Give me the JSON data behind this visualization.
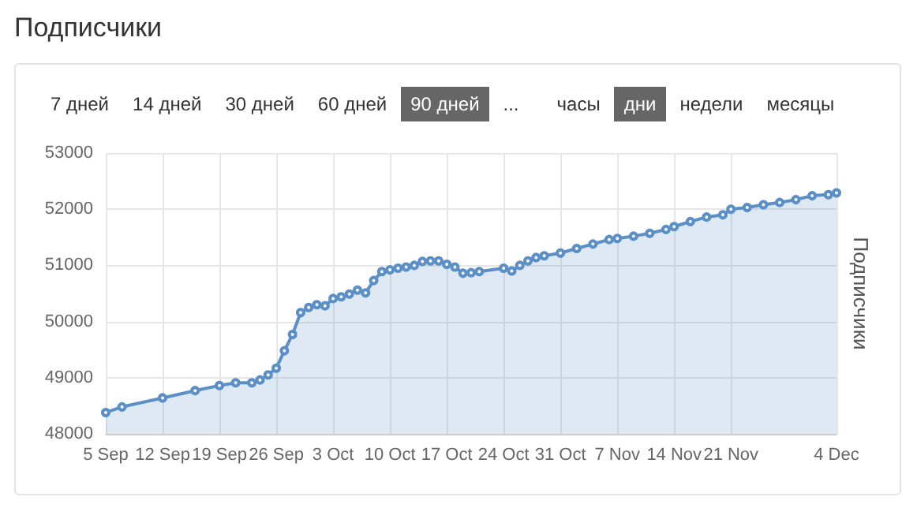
{
  "chart_data": {
    "type": "area",
    "title": "Подписчики",
    "ylabel": "Подписчики",
    "annotations": [
      "7 дней",
      "14 дней",
      "30 дней",
      "60 дней",
      "90 дней",
      "...",
      "часы",
      "дни",
      "недели",
      "месяцы"
    ],
    "x": [
      "--09-05",
      "--09-07",
      "--09-12",
      "--09-16",
      "--09-19",
      "--09-21",
      "--09-23",
      "--09-24",
      "--09-25",
      "--09-26",
      "--09-27",
      "--09-28",
      "--09-29",
      "--09-30",
      "--10-01",
      "--10-02",
      "--10-03",
      "--10-04",
      "--10-05",
      "--10-06",
      "--10-07",
      "--10-08",
      "--10-09",
      "--10-10",
      "--10-11",
      "--10-12",
      "--10-13",
      "--10-14",
      "--10-15",
      "--10-16",
      "--10-17",
      "--10-18",
      "--10-19",
      "--10-20",
      "--10-21",
      "--10-24",
      "--10-25",
      "--10-26",
      "--10-27",
      "--10-28",
      "--10-29",
      "--10-31",
      "--11-02",
      "--11-04",
      "--11-06",
      "--11-07",
      "--11-09",
      "--11-11",
      "--11-13",
      "--11-14",
      "--11-16",
      "--11-18",
      "--11-20",
      "--11-21",
      "--11-23",
      "--11-25",
      "--11-27",
      "--11-29",
      "--12-01",
      "--12-03",
      "--12-04"
    ],
    "series": [
      {
        "color": "#5b8fc7",
        "values": [
          48380,
          48480,
          48640,
          48770,
          48860,
          48910,
          48910,
          48960,
          49050,
          49170,
          49480,
          49770,
          50160,
          50250,
          50300,
          50280,
          50410,
          50440,
          50490,
          50560,
          50510,
          50730,
          50890,
          50920,
          50950,
          50970,
          51000,
          51070,
          51080,
          51080,
          51020,
          50970,
          50860,
          50870,
          50890,
          50950,
          50900,
          51000,
          51080,
          51140,
          51170,
          51220,
          51300,
          51380,
          51460,
          51480,
          51520,
          51570,
          51640,
          51690,
          51780,
          51860,
          51900,
          52000,
          52030,
          52080,
          52120,
          52170,
          52240,
          52260,
          52290
        ]
      }
    ],
    "xlim": [
      "--09-05",
      "--12-04"
    ],
    "xticks": [
      {
        "value": "--09-05",
        "label": "5 Sep"
      },
      {
        "value": "--09-12",
        "label": "12 Sep"
      },
      {
        "value": "--09-19",
        "label": "19 Sep"
      },
      {
        "value": "--09-26",
        "label": "26 Sep"
      },
      {
        "value": "--10-03",
        "label": "3 Oct"
      },
      {
        "value": "--10-10",
        "label": "10 Oct"
      },
      {
        "value": "--10-17",
        "label": "17 Oct"
      },
      {
        "value": "--10-24",
        "label": "24 Oct"
      },
      {
        "value": "--10-31",
        "label": "31 Oct"
      },
      {
        "value": "--11-07",
        "label": "7 Nov"
      },
      {
        "value": "--11-14",
        "label": "14 Nov"
      },
      {
        "value": "--11-21",
        "label": "21 Nov"
      },
      {
        "value": "--12-04",
        "label": "4 Dec"
      }
    ],
    "ylim": [
      48000,
      53000
    ],
    "yticks": [
      48000,
      49000,
      50000,
      51000,
      52000,
      53000
    ],
    "grid": true,
    "marker": "circle",
    "line_style": "solid"
  }
}
